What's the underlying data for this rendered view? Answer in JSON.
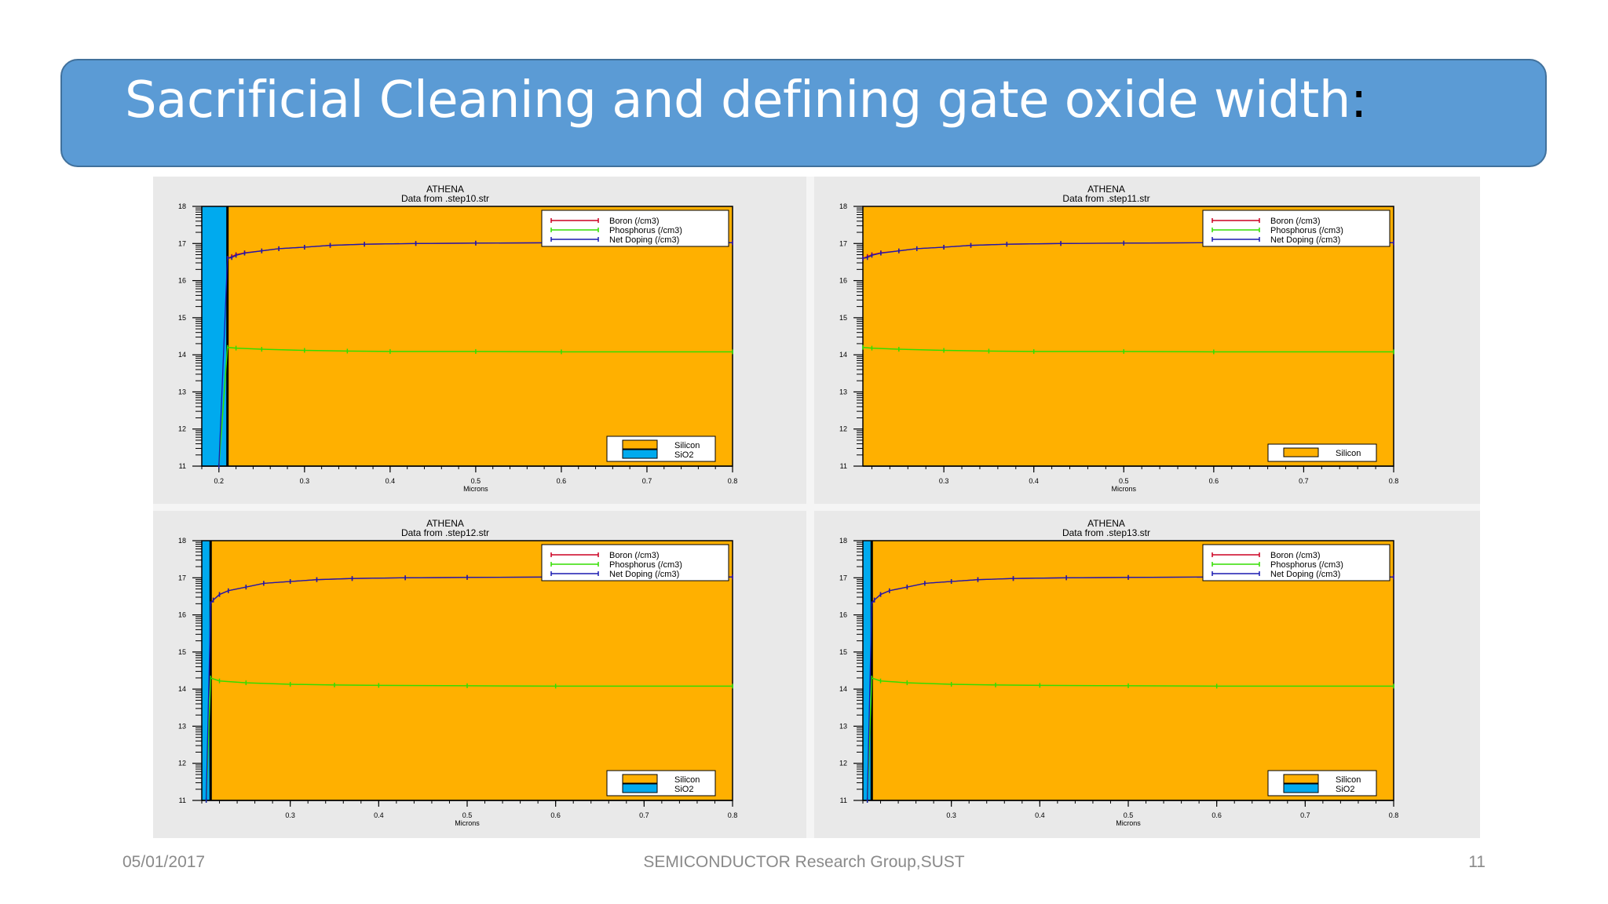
{
  "slide": {
    "title": "Sacrificial Cleaning and defining gate oxide width",
    "title_colon": ":",
    "footer_date": "05/01/2017",
    "footer_center": "SEMICONDUCTOR Research Group,SUST",
    "footer_page": "11"
  },
  "colors": {
    "title_bar": "#5b9bd5",
    "silicon": "#ffb000",
    "sio2": "#00aaee",
    "boron": "#cc0022",
    "phosphorus": "#33dd00",
    "net_doping": "#1a1ab0"
  },
  "chart_data": [
    {
      "type": "line",
      "title": "ATHENA",
      "subtitle": "Data from .step10.str",
      "xlabel": "Microns",
      "ylabel": "",
      "xlim": [
        0.18,
        0.8
      ],
      "ylim": [
        11,
        18
      ],
      "xticks": [
        0.2,
        0.3,
        0.4,
        0.5,
        0.6,
        0.7,
        0.8
      ],
      "xtick_labels": [
        "0.2",
        "0.3",
        "0.4",
        "0.5",
        "0.6",
        "0.7",
        "0.8"
      ],
      "yticks": [
        11,
        12,
        13,
        14,
        15,
        16,
        17,
        18
      ],
      "oxide_range": [
        0.18,
        0.21
      ],
      "legend_series": [
        "Boron (/cm3)",
        "Phosphorus (/cm3)",
        "Net Doping (/cm3)"
      ],
      "legend_regions": [
        "Silicon",
        "SiO2"
      ],
      "series": [
        {
          "name": "Boron (/cm3)",
          "x": [
            0.21,
            0.215,
            0.22,
            0.23,
            0.25,
            0.27,
            0.3,
            0.33,
            0.37,
            0.43,
            0.5,
            0.6,
            0.8
          ],
          "y": [
            16.6,
            16.65,
            16.7,
            16.75,
            16.8,
            16.86,
            16.9,
            16.95,
            16.98,
            17.0,
            17.01,
            17.02,
            17.02
          ]
        },
        {
          "name": "Phosphorus (/cm3)",
          "x": [
            0.2,
            0.21,
            0.22,
            0.25,
            0.3,
            0.35,
            0.4,
            0.5,
            0.6,
            0.8
          ],
          "y": [
            11.0,
            14.2,
            14.18,
            14.15,
            14.12,
            14.1,
            14.09,
            14.09,
            14.08,
            14.08
          ]
        },
        {
          "name": "Net Doping (/cm3)",
          "x": [
            0.2,
            0.21,
            0.215,
            0.22,
            0.23,
            0.25,
            0.27,
            0.3,
            0.33,
            0.37,
            0.43,
            0.5,
            0.6,
            0.8
          ],
          "y": [
            11.0,
            16.6,
            16.62,
            16.68,
            16.74,
            16.8,
            16.86,
            16.9,
            16.95,
            16.98,
            17.0,
            17.01,
            17.02,
            17.02
          ]
        }
      ]
    },
    {
      "type": "line",
      "title": "ATHENA",
      "subtitle": "Data from .step11.str",
      "xlabel": "Microns",
      "ylabel": "",
      "xlim": [
        0.21,
        0.8
      ],
      "ylim": [
        11,
        18
      ],
      "xticks": [
        0.3,
        0.4,
        0.5,
        0.6,
        0.7,
        0.8
      ],
      "xtick_labels": [
        "0.3",
        "0.4",
        "0.5",
        "0.6",
        "0.7",
        "0.8"
      ],
      "yticks": [
        11,
        12,
        13,
        14,
        15,
        16,
        17,
        18
      ],
      "oxide_range": null,
      "legend_series": [
        "Boron (/cm3)",
        "Phosphorus (/cm3)",
        "Net Doping (/cm3)"
      ],
      "legend_regions": [
        "Silicon"
      ],
      "series": [
        {
          "name": "Boron (/cm3)",
          "x": [
            0.21,
            0.215,
            0.22,
            0.23,
            0.25,
            0.27,
            0.3,
            0.33,
            0.37,
            0.43,
            0.5,
            0.6,
            0.8
          ],
          "y": [
            16.6,
            16.65,
            16.7,
            16.75,
            16.8,
            16.86,
            16.9,
            16.95,
            16.98,
            17.0,
            17.01,
            17.02,
            17.02
          ]
        },
        {
          "name": "Phosphorus (/cm3)",
          "x": [
            0.21,
            0.22,
            0.25,
            0.3,
            0.35,
            0.4,
            0.5,
            0.6,
            0.8
          ],
          "y": [
            14.2,
            14.18,
            14.15,
            14.12,
            14.1,
            14.09,
            14.09,
            14.08,
            14.08
          ]
        },
        {
          "name": "Net Doping (/cm3)",
          "x": [
            0.21,
            0.215,
            0.22,
            0.23,
            0.25,
            0.27,
            0.3,
            0.33,
            0.37,
            0.43,
            0.5,
            0.6,
            0.8
          ],
          "y": [
            16.6,
            16.62,
            16.68,
            16.74,
            16.8,
            16.86,
            16.9,
            16.95,
            16.98,
            17.0,
            17.01,
            17.02,
            17.02
          ]
        }
      ]
    },
    {
      "type": "line",
      "title": "ATHENA",
      "subtitle": "Data from .step12.str",
      "xlabel": "Microns",
      "ylabel": "",
      "xlim": [
        0.2,
        0.8
      ],
      "ylim": [
        11,
        18
      ],
      "xticks": [
        0.3,
        0.4,
        0.5,
        0.6,
        0.7,
        0.8
      ],
      "xtick_labels": [
        "0.3",
        "0.4",
        "0.5",
        "0.6",
        "0.7",
        "0.8"
      ],
      "yticks": [
        11,
        12,
        13,
        14,
        15,
        16,
        17,
        18
      ],
      "oxide_range": [
        0.2,
        0.21
      ],
      "legend_series": [
        "Boron (/cm3)",
        "Phosphorus (/cm3)",
        "Net Doping (/cm3)"
      ],
      "legend_regions": [
        "Silicon",
        "SiO2"
      ],
      "series": [
        {
          "name": "Boron (/cm3)",
          "x": [
            0.21,
            0.213,
            0.22,
            0.23,
            0.25,
            0.27,
            0.3,
            0.33,
            0.37,
            0.43,
            0.5,
            0.6,
            0.8
          ],
          "y": [
            16.3,
            16.4,
            16.55,
            16.65,
            16.75,
            16.85,
            16.9,
            16.95,
            16.98,
            17.0,
            17.01,
            17.02,
            17.02
          ]
        },
        {
          "name": "Phosphorus (/cm3)",
          "x": [
            0.205,
            0.21,
            0.22,
            0.25,
            0.3,
            0.35,
            0.4,
            0.5,
            0.6,
            0.8
          ],
          "y": [
            11.0,
            14.3,
            14.22,
            14.17,
            14.13,
            14.11,
            14.1,
            14.09,
            14.08,
            14.08
          ]
        },
        {
          "name": "Net Doping (/cm3)",
          "x": [
            0.205,
            0.21,
            0.213,
            0.22,
            0.23,
            0.25,
            0.27,
            0.3,
            0.33,
            0.37,
            0.43,
            0.5,
            0.6,
            0.8
          ],
          "y": [
            11.0,
            16.3,
            16.4,
            16.55,
            16.65,
            16.75,
            16.85,
            16.9,
            16.95,
            16.98,
            17.0,
            17.01,
            17.02,
            17.02
          ]
        }
      ]
    },
    {
      "type": "line",
      "title": "ATHENA",
      "subtitle": "Data from .step13.str",
      "xlabel": "Microns",
      "ylabel": "",
      "xlim": [
        0.2,
        0.8
      ],
      "ylim": [
        11,
        18
      ],
      "xticks": [
        0.3,
        0.4,
        0.5,
        0.6,
        0.7,
        0.8
      ],
      "xtick_labels": [
        "0.3",
        "0.4",
        "0.5",
        "0.6",
        "0.7",
        "0.8"
      ],
      "yticks": [
        11,
        12,
        13,
        14,
        15,
        16,
        17,
        18
      ],
      "oxide_range": [
        0.2,
        0.21
      ],
      "legend_series": [
        "Boron (/cm3)",
        "Phosphorus (/cm3)",
        "Net Doping (/cm3)"
      ],
      "legend_regions": [
        "Silicon",
        "SiO2"
      ],
      "series": [
        {
          "name": "Boron (/cm3)",
          "x": [
            0.21,
            0.213,
            0.22,
            0.23,
            0.25,
            0.27,
            0.3,
            0.33,
            0.37,
            0.43,
            0.5,
            0.6,
            0.8
          ],
          "y": [
            16.3,
            16.4,
            16.55,
            16.65,
            16.75,
            16.85,
            16.9,
            16.95,
            16.98,
            17.0,
            17.01,
            17.02,
            17.02
          ]
        },
        {
          "name": "Phosphorus (/cm3)",
          "x": [
            0.205,
            0.21,
            0.22,
            0.25,
            0.3,
            0.35,
            0.4,
            0.5,
            0.6,
            0.8
          ],
          "y": [
            11.0,
            14.3,
            14.22,
            14.17,
            14.13,
            14.11,
            14.1,
            14.09,
            14.08,
            14.08
          ]
        },
        {
          "name": "Net Doping (/cm3)",
          "x": [
            0.205,
            0.21,
            0.213,
            0.22,
            0.23,
            0.25,
            0.27,
            0.3,
            0.33,
            0.37,
            0.43,
            0.5,
            0.6,
            0.8
          ],
          "y": [
            11.0,
            16.3,
            16.4,
            16.55,
            16.65,
            16.75,
            16.85,
            16.9,
            16.95,
            16.98,
            17.0,
            17.01,
            17.02,
            17.02
          ]
        }
      ]
    }
  ]
}
